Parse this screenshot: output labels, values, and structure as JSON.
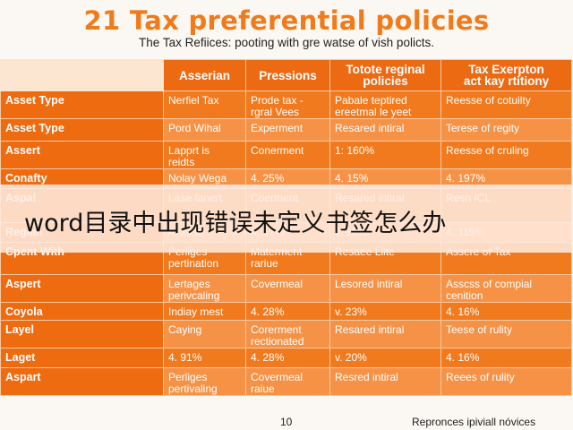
{
  "document": {
    "title": "21 Tax preferential policies",
    "subtitle": "The Tax Refiices: pooting with gre watse of vish policts.",
    "page_number": "10",
    "footer_note": "Repronces ipiviall nóvices"
  },
  "table": {
    "headers": [
      "",
      "Asserian",
      "Pressions",
      "Totote reginal\npolicies",
      "Tax Exerpton\nact kay rtitiony"
    ],
    "rows": [
      [
        "Asset Type",
        "Nerfiel Tax",
        "Prode tax -\nrgral Vees",
        "Pabale teptired\nereetmal le yeet",
        "Reesse of cotuilty"
      ],
      [
        "Asset Type",
        "Pord Wihal",
        "Experment",
        "Resared intiral",
        "Terese of regity"
      ],
      [
        "Assert",
        "Lapprt is\nreidts",
        "Conerment",
        "1: 160%",
        "Reesse of cruling"
      ],
      [
        "Conafty",
        "Nolay Wega",
        "4. 25%",
        "4. 15%",
        "4. 197%"
      ],
      [
        "Aspal",
        "Lase fanert",
        "Coerment",
        "Resared intiral",
        "Resh ICL"
      ],
      [
        "Regian",
        "4. 23%",
        "4. 17%",
        "v. 10%",
        "4. 115%"
      ],
      [
        "Cpent With",
        "Perliges\npertination",
        "Materment\nrariue",
        "Resaee Lilte",
        "Assere of Tax"
      ],
      [
        "Aspert",
        "Lertages\nperivcaling",
        "Covermeal",
        "Lesored intiral",
        "Asscss of compial\ncenition"
      ],
      [
        "Coyola",
        "Indiay mest",
        "4. 28%",
        "v. 23%",
        "4. 16%"
      ],
      [
        "Layel",
        "Caying",
        "Corerment\nrectionated",
        "Resared intiral",
        "Teese of rulity"
      ],
      [
        "Laget",
        "4. 91%",
        "4. 28%",
        "v. 20%",
        "4. 16%"
      ],
      [
        "Aspart",
        "Perliges\npertivaling",
        "Covermeal\nraiue",
        "Resred intiral",
        "Reees of rulity"
      ]
    ]
  },
  "overlay": {
    "banner_text": "word目录中出现错误未定义书签怎么办"
  }
}
